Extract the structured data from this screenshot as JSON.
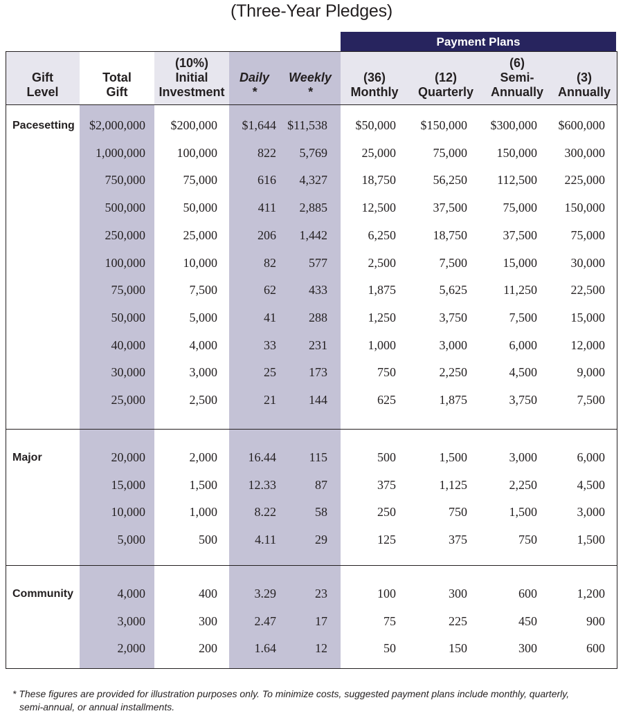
{
  "title": "(Three-Year Pledges)",
  "payment_plans_label": "Payment Plans",
  "colors": {
    "header_band": "#e7e6ee",
    "shaded_band": "#c4c2d6",
    "banner": "#27245e"
  },
  "columns": [
    {
      "lines": [
        "Gift",
        "Level"
      ],
      "italic": false
    },
    {
      "lines": [
        "Total",
        "Gift"
      ],
      "italic": false
    },
    {
      "lines": [
        "(10%)",
        "Initial",
        "Investment"
      ],
      "italic": false
    },
    {
      "lines": [
        "Daily",
        "*"
      ],
      "italic": true
    },
    {
      "lines": [
        "Weekly",
        "*"
      ],
      "italic": true
    },
    {
      "lines": [
        "(36)",
        "Monthly"
      ],
      "italic": false
    },
    {
      "lines": [
        "(12)",
        "Quarterly"
      ],
      "italic": false
    },
    {
      "lines": [
        "(6)",
        "Semi-",
        "Annually"
      ],
      "italic": false
    },
    {
      "lines": [
        "(3)",
        "Annually"
      ],
      "italic": false
    }
  ],
  "groups": [
    {
      "name": "Pacesetting",
      "rows": [
        [
          "$2,000,000",
          "$200,000",
          "$1,644",
          "$11,538",
          "$50,000",
          "$150,000",
          "$300,000",
          "$600,000"
        ],
        [
          "1,000,000",
          "100,000",
          "822",
          "5,769",
          "25,000",
          "75,000",
          "150,000",
          "300,000"
        ],
        [
          "750,000",
          "75,000",
          "616",
          "4,327",
          "18,750",
          "56,250",
          "112,500",
          "225,000"
        ],
        [
          "500,000",
          "50,000",
          "411",
          "2,885",
          "12,500",
          "37,500",
          "75,000",
          "150,000"
        ],
        [
          "250,000",
          "25,000",
          "206",
          "1,442",
          "6,250",
          "18,750",
          "37,500",
          "75,000"
        ],
        [
          "100,000",
          "10,000",
          "82",
          "577",
          "2,500",
          "7,500",
          "15,000",
          "30,000"
        ],
        [
          "75,000",
          "7,500",
          "62",
          "433",
          "1,875",
          "5,625",
          "11,250",
          "22,500"
        ],
        [
          "50,000",
          "5,000",
          "41",
          "288",
          "1,250",
          "3,750",
          "7,500",
          "15,000"
        ],
        [
          "40,000",
          "4,000",
          "33",
          "231",
          "1,000",
          "3,000",
          "6,000",
          "12,000"
        ],
        [
          "30,000",
          "3,000",
          "25",
          "173",
          "750",
          "2,250",
          "4,500",
          "9,000"
        ],
        [
          "25,000",
          "2,500",
          "21",
          "144",
          "625",
          "1,875",
          "3,750",
          "7,500"
        ]
      ]
    },
    {
      "name": "Major",
      "rows": [
        [
          "20,000",
          "2,000",
          "16.44",
          "115",
          "500",
          "1,500",
          "3,000",
          "6,000"
        ],
        [
          "15,000",
          "1,500",
          "12.33",
          "87",
          "375",
          "1,125",
          "2,250",
          "4,500"
        ],
        [
          "10,000",
          "1,000",
          "8.22",
          "58",
          "250",
          "750",
          "1,500",
          "3,000"
        ],
        [
          "5,000",
          "500",
          "4.11",
          "29",
          "125",
          "375",
          "750",
          "1,500"
        ]
      ]
    },
    {
      "name": "Community",
      "rows": [
        [
          "4,000",
          "400",
          "3.29",
          "23",
          "100",
          "300",
          "600",
          "1,200"
        ],
        [
          "3,000",
          "300",
          "2.47",
          "17",
          "75",
          "225",
          "450",
          "900"
        ],
        [
          "2,000",
          "200",
          "1.64",
          "12",
          "50",
          "150",
          "300",
          "600"
        ]
      ]
    }
  ],
  "footnote_lines": [
    "* These figures are provided for illustration purposes only. To minimize costs, suggested payment plans include monthly, quarterly,",
    "semi-annual, or annual installments."
  ]
}
